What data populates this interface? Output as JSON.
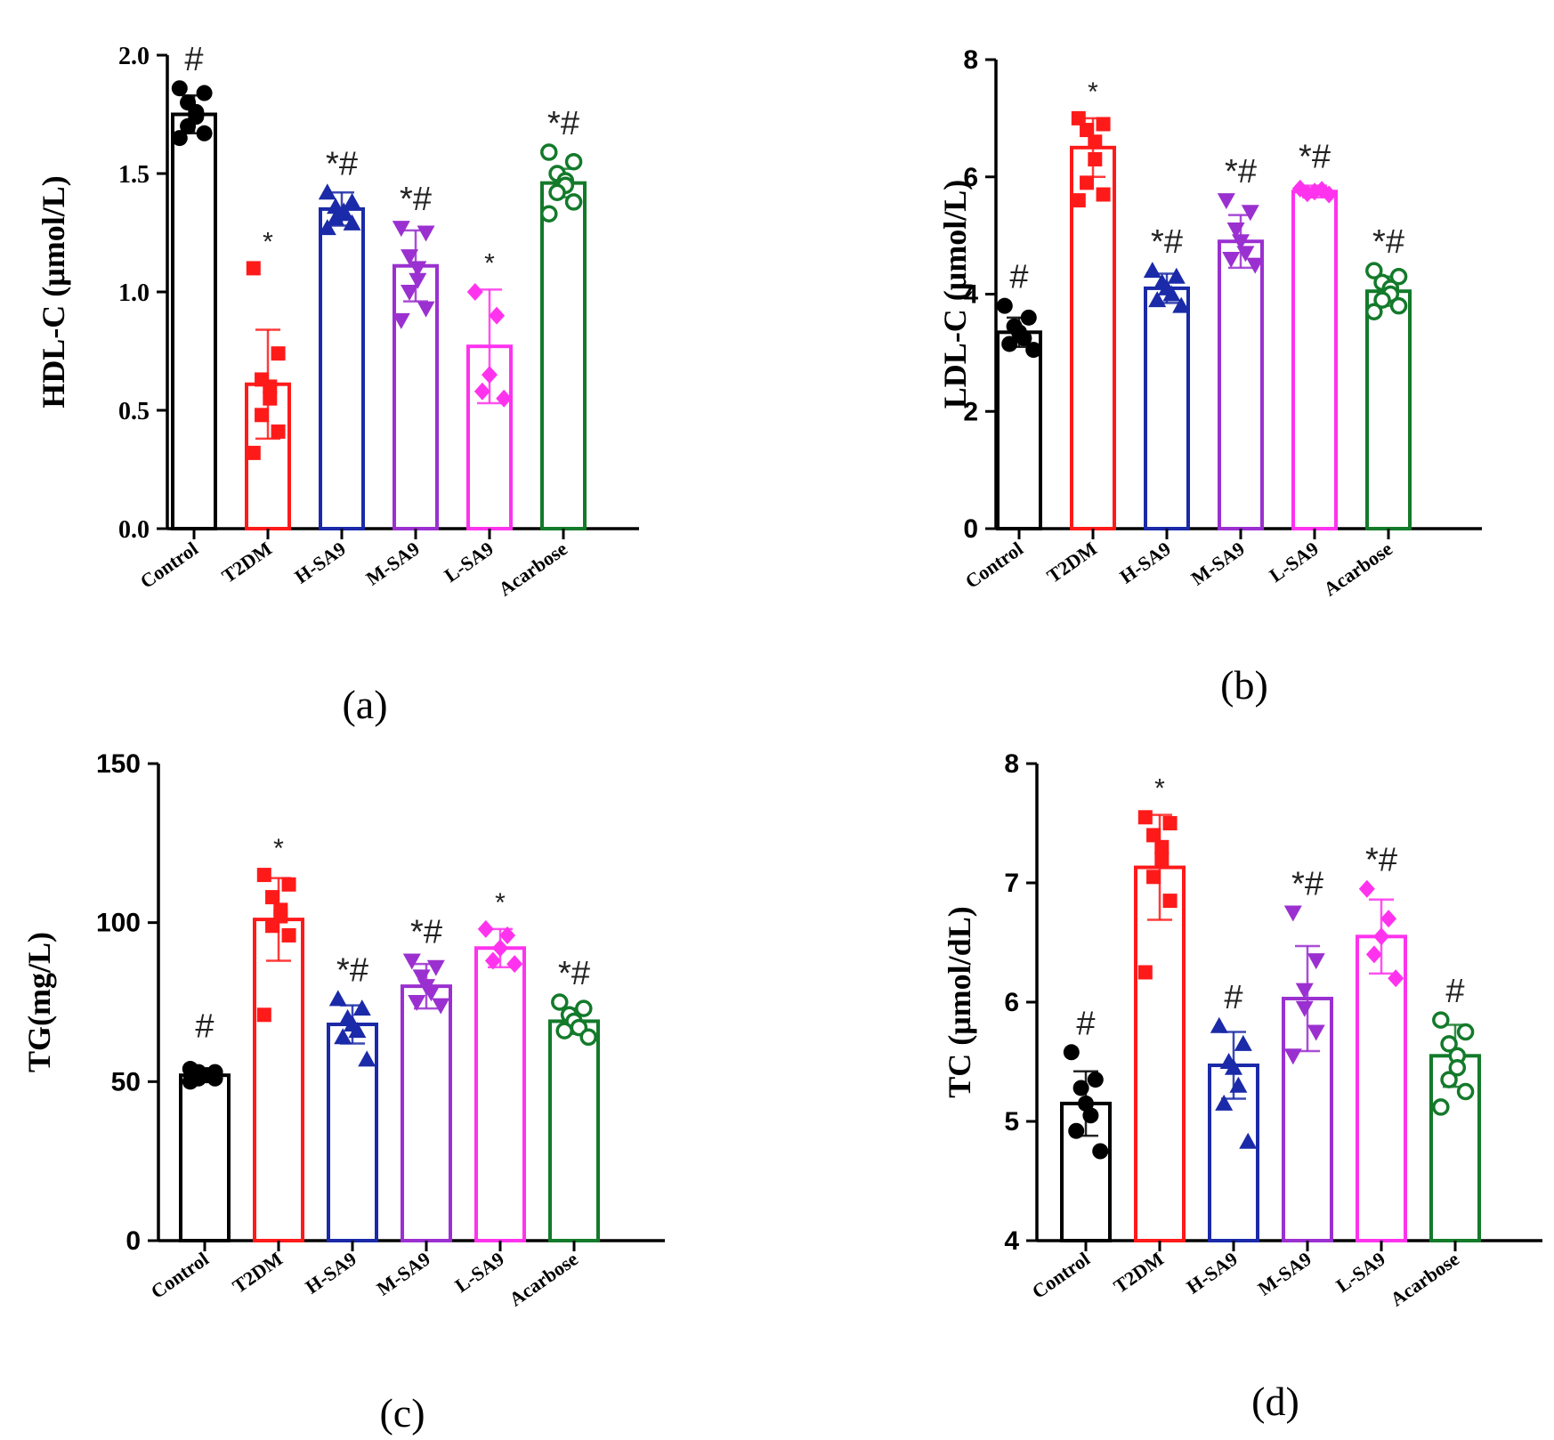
{
  "colors": {
    "Control": "#000000",
    "T2DM": "#ff1a1a",
    "H-SA9": "#1a2aa8",
    "M-SA9": "#9b30d0",
    "L-SA9": "#ff33ee",
    "Acarbose": "#137a2a"
  },
  "markers": {
    "Control": "circle",
    "T2DM": "square",
    "H-SA9": "triangle-up",
    "M-SA9": "triangle-down",
    "L-SA9": "diamond",
    "Acarbose": "circle-open"
  },
  "chart_data": [
    {
      "id": "a",
      "type": "bar",
      "panel_label": "(a)",
      "ylabel": "HDL-C (μmol/L)",
      "ylim": [
        0,
        2.0
      ],
      "yticks": [
        "0.0",
        "0.5",
        "1.0",
        "1.5",
        "2.0"
      ],
      "categories": [
        "Control",
        "T2DM",
        "H-SA9",
        "M-SA9",
        "L-SA9",
        "Acarbose"
      ],
      "values": [
        1.75,
        0.61,
        1.35,
        1.11,
        0.77,
        1.46
      ],
      "errors": [
        0.08,
        0.23,
        0.07,
        0.15,
        0.24,
        0.06
      ],
      "significance": [
        "#",
        "*",
        "*#",
        "*#",
        "*",
        "*#"
      ],
      "points": [
        [
          1.86,
          1.84,
          1.8,
          1.76,
          1.74,
          1.7,
          1.67,
          1.65
        ],
        [
          1.1,
          0.74,
          0.63,
          0.6,
          0.55,
          0.48,
          0.41,
          0.32
        ],
        [
          1.42,
          1.38,
          1.36,
          1.34,
          1.33,
          1.31,
          1.29,
          1.27
        ],
        [
          1.27,
          1.25,
          1.15,
          1.1,
          1.05,
          1.0,
          0.93,
          0.88
        ],
        [
          1.0,
          0.9,
          0.65,
          0.58,
          0.55
        ],
        [
          1.59,
          1.55,
          1.5,
          1.47,
          1.45,
          1.42,
          1.38,
          1.33
        ]
      ],
      "tick_font": "serif",
      "ylabel_font": "serif"
    },
    {
      "id": "b",
      "type": "bar",
      "panel_label": "(b)",
      "ylabel": "LDL-C (μmol/L)",
      "ylim": [
        0,
        8
      ],
      "yticks": [
        "0",
        "2",
        "4",
        "6",
        "8"
      ],
      "categories": [
        "Control",
        "T2DM",
        "H-SA9",
        "M-SA9",
        "L-SA9",
        "Acarbose"
      ],
      "values": [
        3.35,
        6.5,
        4.1,
        4.9,
        5.75,
        4.05
      ],
      "errors": [
        0.25,
        0.5,
        0.25,
        0.45,
        0.1,
        0.25
      ],
      "significance": [
        "#",
        "*",
        "*#",
        "*#",
        "*#",
        "*#"
      ],
      "points": [
        [
          3.8,
          3.6,
          3.45,
          3.35,
          3.25,
          3.15,
          3.05
        ],
        [
          7.0,
          6.9,
          6.8,
          6.6,
          6.3,
          5.9,
          5.7,
          5.6
        ],
        [
          4.4,
          4.3,
          4.2,
          4.1,
          4.0,
          3.9,
          3.8
        ],
        [
          5.6,
          5.4,
          5.1,
          4.9,
          4.7,
          4.6,
          4.5
        ],
        [
          5.8,
          5.78,
          5.75,
          5.72,
          5.7
        ],
        [
          4.4,
          4.3,
          4.2,
          4.1,
          4.0,
          3.9,
          3.8,
          3.7
        ]
      ],
      "tick_font": "sans",
      "ylabel_font": "serif"
    },
    {
      "id": "c",
      "type": "bar",
      "panel_label": "(c)",
      "ylabel": "TG(mg/L)",
      "ylim": [
        0,
        150
      ],
      "yticks": [
        "0",
        "50",
        "100",
        "150"
      ],
      "categories": [
        "Control",
        "T2DM",
        "H-SA9",
        "M-SA9",
        "L-SA9",
        "Acarbose"
      ],
      "values": [
        52,
        101,
        68,
        80,
        92,
        69
      ],
      "errors": [
        1.5,
        13,
        6,
        7,
        6,
        4
      ],
      "significance": [
        "",
        "*",
        "*#",
        "*#",
        "*",
        "*#"
      ],
      "extra_symbols": [
        {
          "category": "Control",
          "text": "#",
          "value": 64
        }
      ],
      "points": [
        [
          54,
          53,
          53,
          52,
          52,
          51,
          51,
          50
        ],
        [
          115,
          112,
          108,
          104,
          102,
          99,
          96,
          71
        ],
        [
          76,
          73,
          70,
          68,
          66,
          64,
          57
        ],
        [
          88,
          86,
          83,
          80,
          78,
          75,
          74
        ],
        [
          98,
          96,
          92,
          88,
          87
        ],
        [
          75,
          73,
          71,
          69,
          67,
          66,
          64
        ]
      ],
      "tick_font": "sans",
      "ylabel_font": "serif"
    },
    {
      "id": "d",
      "type": "bar",
      "panel_label": "(d)",
      "ylabel": "TC (μmol/dL)",
      "ylim": [
        4,
        8
      ],
      "yticks": [
        "4",
        "5",
        "6",
        "7",
        "8"
      ],
      "categories": [
        "Control",
        "T2DM",
        "H-SA9",
        "M-SA9",
        "L-SA9",
        "Acarbose"
      ],
      "values": [
        5.15,
        7.13,
        5.47,
        6.03,
        6.55,
        5.55
      ],
      "errors": [
        0.27,
        0.44,
        0.28,
        0.44,
        0.31,
        0.26
      ],
      "significance": [
        "#",
        "*",
        "#",
        "*#",
        "*#",
        "#"
      ],
      "points": [
        [
          5.58,
          5.35,
          5.28,
          5.15,
          5.05,
          4.92,
          4.75
        ],
        [
          7.55,
          7.5,
          7.4,
          7.3,
          7.2,
          7.05,
          6.85,
          6.25
        ],
        [
          5.8,
          5.65,
          5.5,
          5.45,
          5.3,
          5.15,
          4.83
        ],
        [
          6.75,
          6.35,
          6.1,
          5.95,
          5.75,
          5.55
        ],
        [
          6.95,
          6.7,
          6.55,
          6.4,
          6.2
        ],
        [
          5.85,
          5.75,
          5.65,
          5.55,
          5.45,
          5.35,
          5.25,
          5.12
        ]
      ],
      "tick_font": "sans",
      "ylabel_font": "serif"
    }
  ]
}
